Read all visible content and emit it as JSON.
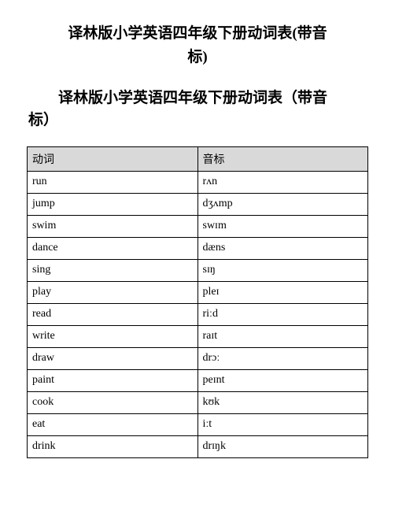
{
  "document": {
    "title_line1": "译林版小学英语四年级下册动词表(带音",
    "title_line2": "标)",
    "subtitle_line1": "译林版小学英语四年级下册动词表（带音",
    "subtitle_line2": "标）"
  },
  "table": {
    "type": "table",
    "header_bg": "#d9d9d9",
    "border_color": "#000000",
    "columns": [
      "动词",
      "音标"
    ],
    "rows": [
      [
        "run",
        "rʌn"
      ],
      [
        "jump",
        "dʒʌmp"
      ],
      [
        "swim",
        "swɪm"
      ],
      [
        "dance",
        "dæns"
      ],
      [
        "sing",
        "sɪŋ"
      ],
      [
        "play",
        "pleɪ"
      ],
      [
        "read",
        "riːd"
      ],
      [
        "write",
        "raɪt"
      ],
      [
        "draw",
        "drɔː"
      ],
      [
        "paint",
        "peɪnt"
      ],
      [
        "cook",
        "kʊk"
      ],
      [
        "eat",
        "iːt"
      ],
      [
        "drink",
        "drɪŋk"
      ]
    ]
  }
}
